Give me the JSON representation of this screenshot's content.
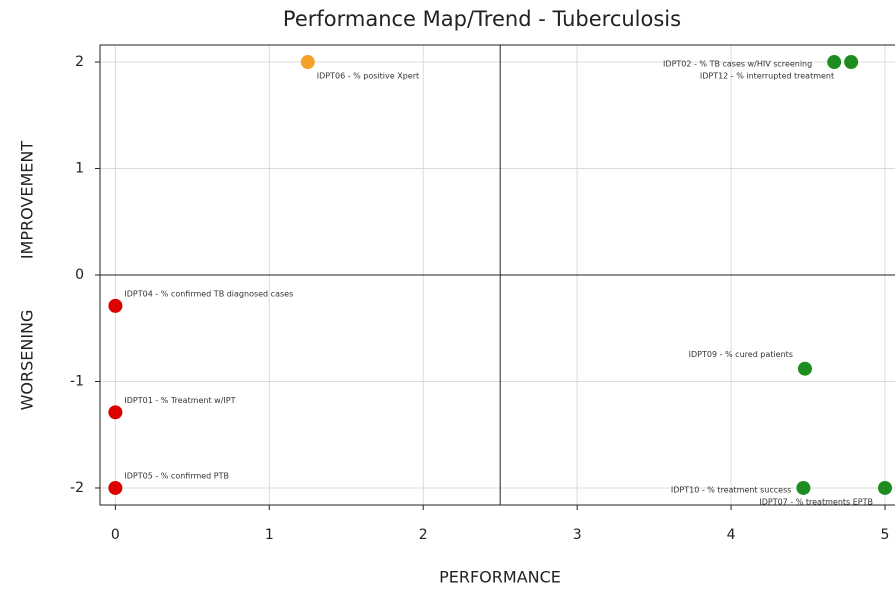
{
  "chart_data": {
    "type": "scatter",
    "title": "Performance Map/Trend - Tuberculosis",
    "xlabel": "PERFORMANCE",
    "ylabel_top": "IMPROVEMENT",
    "ylabel_bottom": "WORSENING",
    "xlim": [
      -0.1,
      5.065
    ],
    "ylim": [
      -2.16,
      2.16
    ],
    "xticks": [
      0,
      1,
      2,
      3,
      4,
      5
    ],
    "yticks": [
      -2,
      -1,
      0,
      1,
      2
    ],
    "grid": true,
    "quadrant_x": 2.5,
    "quadrant_y": 0,
    "points": [
      {
        "label": "IDPT06 - % positive Xpert",
        "x": 1.25,
        "y": 2,
        "color": "#f5a02a"
      },
      {
        "label": "IDPT02 - % TB cases w/HIV screening",
        "x": 4.67,
        "y": 2,
        "color": "#1e8c1e"
      },
      {
        "label": "IDPT12 - % interrupted treatment",
        "x": 4.78,
        "y": 2,
        "color": "#1e8c1e"
      },
      {
        "label": "IDPT04 - % confirmed TB diagnosed cases",
        "x": 0,
        "y": -0.29,
        "color": "#dd0000"
      },
      {
        "label": "IDPT01 - % Treatment w/IPT",
        "x": 0,
        "y": -1.29,
        "color": "#dd0000"
      },
      {
        "label": "IDPT05 - % confirmed PTB",
        "x": 0,
        "y": -2,
        "color": "#dd0000"
      },
      {
        "label": "IDPT09 - % cured patients",
        "x": 4.48,
        "y": -0.88,
        "color": "#1e8c1e"
      },
      {
        "label": "IDPT10 - % treatment success",
        "x": 4.47,
        "y": -2,
        "color": "#1e8c1e"
      },
      {
        "label": "IDPT07 - % treatments EPTB",
        "x": 5,
        "y": -2,
        "color": "#1e8c1e"
      }
    ]
  }
}
